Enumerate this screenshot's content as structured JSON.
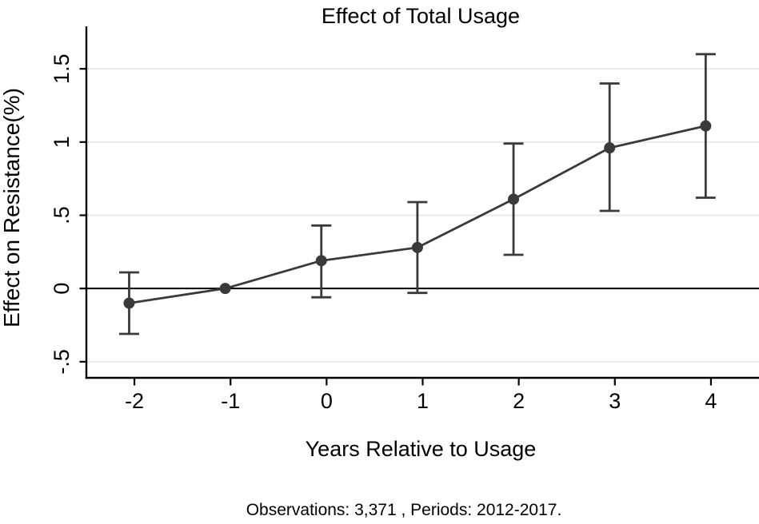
{
  "chart_data": {
    "type": "line",
    "title": "Effect of Total Usage",
    "xlabel": "Years Relative to Usage",
    "ylabel": "Effect on Resistance(%)",
    "note": "Observations: 3,371 , Periods: 2012-2017.",
    "series": [
      {
        "name": "Effect of Total Usage",
        "x": [
          -2,
          -1,
          0,
          1,
          2,
          3,
          4
        ],
        "y": [
          -0.1,
          0.0,
          0.19,
          0.28,
          0.61,
          0.96,
          1.11
        ],
        "ci_low": [
          -0.31,
          null,
          -0.06,
          -0.03,
          0.23,
          0.53,
          0.62
        ],
        "ci_high": [
          0.11,
          null,
          0.43,
          0.59,
          0.99,
          1.4,
          1.6
        ]
      }
    ],
    "x_ticks": [
      -2,
      -1,
      0,
      1,
      2,
      3,
      4
    ],
    "x_tick_labels": [
      "-2",
      "-1",
      "0",
      "1",
      "2",
      "3",
      "4"
    ],
    "y_ticks": [
      -0.5,
      0,
      0.5,
      1,
      1.5
    ],
    "y_tick_labels": [
      "-.5",
      "0",
      ".5",
      "1",
      "1.5"
    ],
    "xlim": [
      -2.5,
      4.5
    ],
    "ylim": [
      -0.61,
      1.79
    ],
    "grid": "horizontal",
    "zero_line": true,
    "legend": "none"
  },
  "colors": {
    "series": "#3a3a3a",
    "grid": "#eaeaea",
    "axis": "#000000",
    "zero_line": "#000000",
    "background": "#ffffff",
    "text": "#000000"
  }
}
